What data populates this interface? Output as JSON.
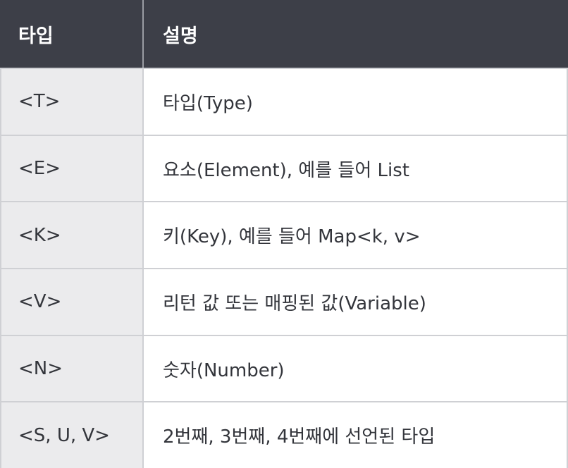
{
  "header": {
    "col_type": "타입",
    "col_desc": "설명"
  },
  "rows": [
    {
      "type": "<T>",
      "desc": "타입(Type)"
    },
    {
      "type": "<E>",
      "desc": "요소(Element), 예를 들어 List"
    },
    {
      "type": "<K>",
      "desc": "키(Key), 예를 들어 Map<k, v>"
    },
    {
      "type": "<V>",
      "desc": "리턴 값 또는 매핑된 값(Variable)"
    },
    {
      "type": "<N>",
      "desc": "숫자(Number)"
    },
    {
      "type": "<S, U, V>",
      "desc": "2번째, 3번째, 4번째에 선언된 타입"
    }
  ],
  "colors": {
    "header_bg": "#3d3f48",
    "first_col_bg": "#ebebed",
    "border": "#cfd0d4",
    "text": "#33353b"
  }
}
